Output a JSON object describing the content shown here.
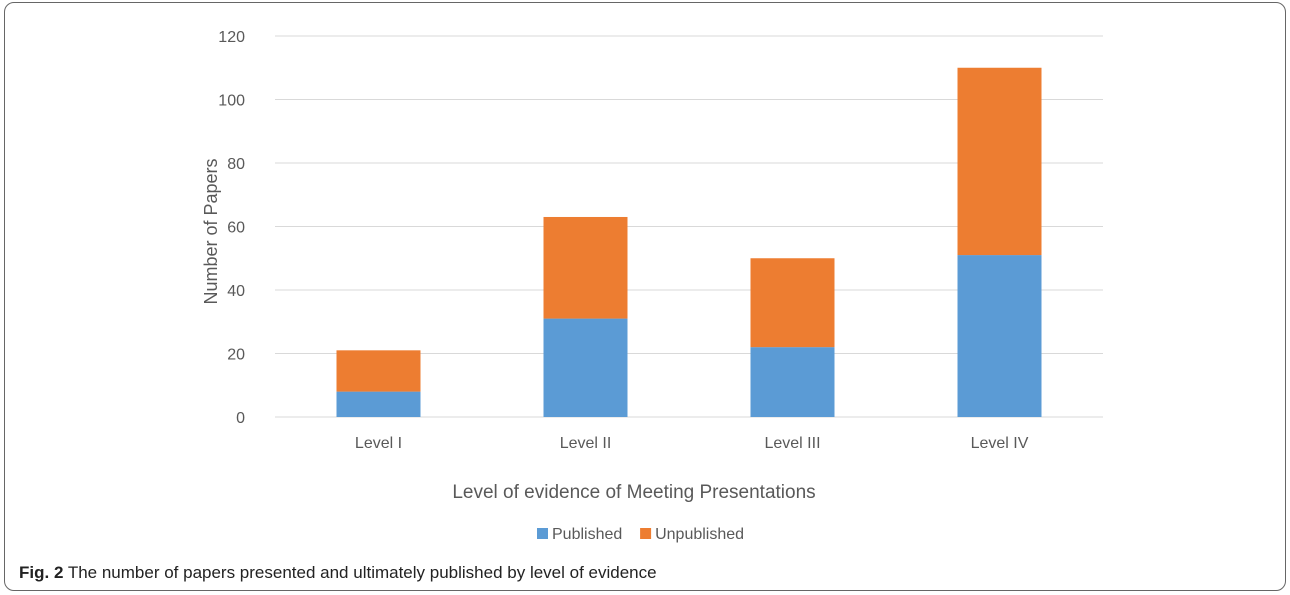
{
  "chart_data": {
    "type": "bar",
    "stacked": true,
    "categories": [
      "Level I",
      "Level II",
      "Level III",
      "Level IV"
    ],
    "series": [
      {
        "name": "Published",
        "values": [
          8,
          31,
          22,
          51
        ],
        "color": "#5B9BD5"
      },
      {
        "name": "Unpublished",
        "values": [
          13,
          32,
          28,
          59
        ],
        "color": "#ED7D31"
      }
    ],
    "xlabel": "Level of evidence of Meeting Presentations",
    "ylabel": "Number of Papers",
    "ylim": [
      0,
      120
    ],
    "yticks": [
      "0",
      "20",
      "40",
      "60",
      "80",
      "100",
      "120"
    ],
    "grid": true,
    "legend": "bottom"
  },
  "caption": {
    "label": "Fig. 2",
    "text": "The number of papers presented and ultimately published by level of evidence"
  }
}
